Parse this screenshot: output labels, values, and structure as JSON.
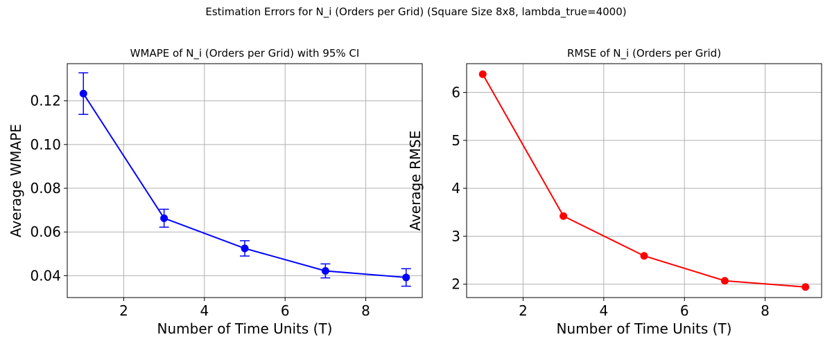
{
  "figure": {
    "suptitle": "Estimation Errors for N_i (Orders per Grid) (Square Size 8x8, lambda_true=4000)"
  },
  "chart_data": [
    {
      "type": "line",
      "title": "WMAPE of N_i (Orders per Grid) with 95% CI",
      "xlabel": "Number of Time Units (T)",
      "ylabel": "Average WMAPE",
      "x": [
        1,
        3,
        5,
        7,
        9
      ],
      "series": [
        {
          "values": [
            0.1233,
            0.0663,
            0.0525,
            0.0422,
            0.0392
          ],
          "ci_lower": [
            0.1138,
            0.0622,
            0.049,
            0.039,
            0.0352
          ],
          "ci_upper": [
            0.1328,
            0.0704,
            0.056,
            0.0454,
            0.0432
          ],
          "color": "#0000ff",
          "marker": "circle",
          "error_bars": true
        }
      ],
      "xlim": [
        0.6,
        9.4
      ],
      "ylim": [
        0.03,
        0.137
      ],
      "xticks": [
        2,
        4,
        6,
        8
      ],
      "xtick_labels": [
        "2",
        "4",
        "6",
        "8"
      ],
      "yticks": [
        0.04,
        0.06,
        0.08,
        0.1,
        0.12
      ],
      "ytick_labels": [
        "0.04",
        "0.06",
        "0.08",
        "0.10",
        "0.12"
      ],
      "grid": true
    },
    {
      "type": "line",
      "title": "RMSE of N_i (Orders per Grid)",
      "xlabel": "Number of Time Units (T)",
      "ylabel": "Average RMSE",
      "x": [
        1,
        3,
        5,
        7,
        9
      ],
      "series": [
        {
          "values": [
            6.38,
            3.42,
            2.59,
            2.07,
            1.94
          ],
          "color": "#ff0000",
          "marker": "circle",
          "error_bars": false
        }
      ],
      "xlim": [
        0.6,
        9.4
      ],
      "ylim": [
        1.72,
        6.6
      ],
      "xticks": [
        2,
        4,
        6,
        8
      ],
      "xtick_labels": [
        "2",
        "4",
        "6",
        "8"
      ],
      "yticks": [
        2,
        3,
        4,
        5,
        6
      ],
      "ytick_labels": [
        "2",
        "3",
        "4",
        "5",
        "6"
      ],
      "grid": true
    }
  ]
}
